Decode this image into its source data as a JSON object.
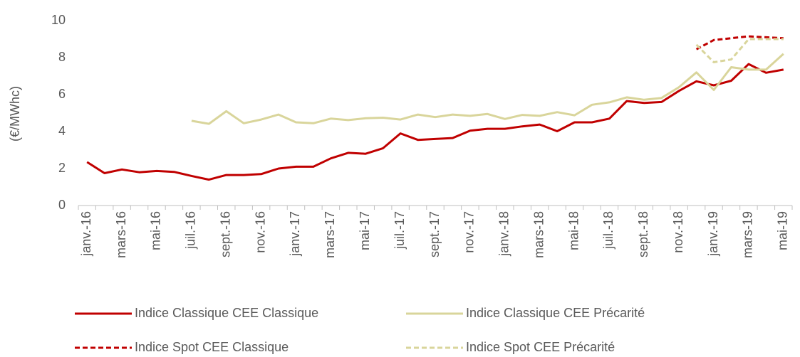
{
  "chart_data": {
    "type": "line",
    "y_label": "(€/MWhc)",
    "categories": [
      "janv.-16",
      null,
      "mars-16",
      null,
      "mai-16",
      null,
      "juil.-16",
      null,
      "sept.-16",
      null,
      "nov.-16",
      null,
      "janv.-17",
      null,
      "mars-17",
      null,
      "mai-17",
      null,
      "juil.-17",
      null,
      "sept.-17",
      null,
      "nov.-17",
      null,
      "janv.-18",
      null,
      "mars-18",
      null,
      "mai-18",
      null,
      "juil.-18",
      null,
      "sept.-18",
      null,
      "nov.-18",
      null,
      "janv.-19",
      null,
      "mars-19",
      null,
      "mai-19"
    ],
    "series": [
      {
        "name": "Indice Classique CEE Classique",
        "color": "#c00000",
        "dash": false,
        "values": [
          2.35,
          1.75,
          1.95,
          1.8,
          1.87,
          1.82,
          1.6,
          1.4,
          1.65,
          1.65,
          1.7,
          2.0,
          2.1,
          2.1,
          2.55,
          2.85,
          2.8,
          3.1,
          3.9,
          3.55,
          3.6,
          3.65,
          4.05,
          4.15,
          4.15,
          4.28,
          4.38,
          4.02,
          4.5,
          4.5,
          4.7,
          5.65,
          5.55,
          5.6,
          6.2,
          6.72,
          6.5,
          6.75,
          7.65,
          7.18,
          7.35
        ]
      },
      {
        "name": "Indice Classique CEE Précarité",
        "color": "#d9d59b",
        "dash": false,
        "values": [
          null,
          null,
          null,
          null,
          null,
          null,
          4.58,
          4.42,
          5.1,
          4.45,
          4.65,
          4.92,
          4.5,
          4.45,
          4.7,
          4.62,
          4.72,
          4.75,
          4.65,
          4.92,
          4.78,
          4.92,
          4.85,
          4.95,
          4.68,
          4.9,
          4.85,
          5.05,
          4.88,
          5.45,
          5.58,
          5.85,
          5.72,
          5.82,
          6.4,
          7.2,
          6.25,
          7.48,
          7.35,
          7.35,
          8.2
        ]
      },
      {
        "name": "Indice Spot CEE Classique",
        "color": "#c00000",
        "dash": true,
        "values": [
          null,
          null,
          null,
          null,
          null,
          null,
          null,
          null,
          null,
          null,
          null,
          null,
          null,
          null,
          null,
          null,
          null,
          null,
          null,
          null,
          null,
          null,
          null,
          null,
          null,
          null,
          null,
          null,
          null,
          null,
          null,
          null,
          null,
          null,
          null,
          8.45,
          8.95,
          9.05,
          9.15,
          9.1,
          9.05
        ]
      },
      {
        "name": "Indice Spot CEE Précarité",
        "color": "#d9d59b",
        "dash": true,
        "values": [
          null,
          null,
          null,
          null,
          null,
          null,
          null,
          null,
          null,
          null,
          null,
          null,
          null,
          null,
          null,
          null,
          null,
          null,
          null,
          null,
          null,
          null,
          null,
          null,
          null,
          null,
          null,
          null,
          null,
          null,
          null,
          null,
          null,
          null,
          null,
          8.7,
          7.75,
          7.9,
          9.0,
          9.0,
          9.0
        ]
      }
    ],
    "ylim": [
      0,
      10
    ],
    "yticks": [
      0,
      2,
      4,
      6,
      8,
      10
    ],
    "grid": false
  }
}
